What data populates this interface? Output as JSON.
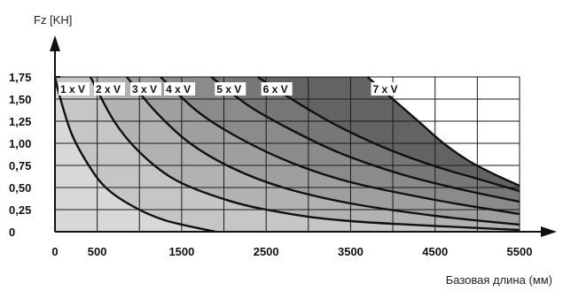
{
  "chart_data": {
    "type": "area",
    "ylabel": "Fz [KH]",
    "xlabel": "Базовая длина (мм)",
    "ylim": [
      0,
      1.75
    ],
    "xlim": [
      0,
      5500
    ],
    "y_ticks": [
      "0",
      "0,25",
      "0,50",
      "0,75",
      "1,00",
      "1,25",
      "1,50",
      "1,75"
    ],
    "y_tick_values": [
      0,
      0.25,
      0.5,
      0.75,
      1.0,
      1.25,
      1.5,
      1.75
    ],
    "x_ticks": [
      "0",
      "500",
      "1500",
      "2500",
      "3500",
      "4500",
      "5500"
    ],
    "x_tick_values": [
      0,
      500,
      1500,
      2500,
      3500,
      4500,
      5500
    ],
    "grid": true,
    "colors": {
      "bands": [
        "#d8d8d8",
        "#c6c6c6",
        "#b2b2b2",
        "#9f9f9f",
        "#8b8b8b",
        "#777777",
        "#636363"
      ],
      "curve": "#111111",
      "grid": "#1a1a1a",
      "label_bg": "#ffffff"
    },
    "series": [
      {
        "name": "1 x V",
        "x_start": 0,
        "x_end": 1900,
        "values": [
          [
            0,
            1.75
          ],
          [
            50,
            1.55
          ],
          [
            200,
            1.1
          ],
          [
            400,
            0.75
          ],
          [
            600,
            0.5
          ],
          [
            900,
            0.3
          ],
          [
            1300,
            0.13
          ],
          [
            1900,
            0
          ]
        ]
      },
      {
        "name": "2 x V",
        "x_start": 420,
        "x_end": 5500,
        "values": [
          [
            420,
            1.75
          ],
          [
            700,
            1.25
          ],
          [
            1000,
            0.9
          ],
          [
            1400,
            0.6
          ],
          [
            1900,
            0.4
          ],
          [
            2500,
            0.25
          ],
          [
            3500,
            0.12
          ],
          [
            5500,
            0.02
          ]
        ]
      },
      {
        "name": "3 x V",
        "x_start": 850,
        "x_end": 5500,
        "values": [
          [
            850,
            1.75
          ],
          [
            1200,
            1.35
          ],
          [
            1600,
            1.0
          ],
          [
            2100,
            0.72
          ],
          [
            2700,
            0.5
          ],
          [
            3500,
            0.32
          ],
          [
            4500,
            0.18
          ],
          [
            5500,
            0.08
          ]
        ]
      },
      {
        "name": "4 x V",
        "x_start": 1250,
        "x_end": 5500,
        "values": [
          [
            1250,
            1.75
          ],
          [
            1700,
            1.35
          ],
          [
            2200,
            1.05
          ],
          [
            2800,
            0.78
          ],
          [
            3500,
            0.56
          ],
          [
            4500,
            0.36
          ],
          [
            5500,
            0.2
          ]
        ]
      },
      {
        "name": "5 x V",
        "x_start": 1850,
        "x_end": 5500,
        "values": [
          [
            1850,
            1.75
          ],
          [
            2300,
            1.42
          ],
          [
            2800,
            1.15
          ],
          [
            3400,
            0.88
          ],
          [
            4100,
            0.65
          ],
          [
            4800,
            0.48
          ],
          [
            5500,
            0.34
          ]
        ]
      },
      {
        "name": "6 x V",
        "x_start": 2400,
        "x_end": 5500,
        "values": [
          [
            2400,
            1.75
          ],
          [
            2800,
            1.5
          ],
          [
            3300,
            1.22
          ],
          [
            3900,
            0.95
          ],
          [
            4500,
            0.74
          ],
          [
            5000,
            0.6
          ],
          [
            5500,
            0.46
          ]
        ]
      },
      {
        "name": "7 x V",
        "x_start": 3700,
        "x_end": 5500,
        "values": [
          [
            3700,
            1.75
          ],
          [
            4000,
            1.5
          ],
          [
            4300,
            1.25
          ],
          [
            4600,
            1.0
          ],
          [
            4900,
            0.8
          ],
          [
            5200,
            0.65
          ],
          [
            5500,
            0.52
          ]
        ]
      }
    ]
  }
}
